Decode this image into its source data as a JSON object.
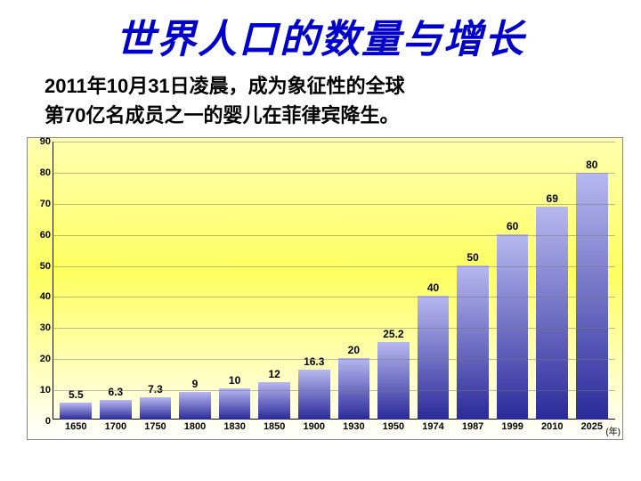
{
  "title": "世界人口的数量与增长",
  "subtitle_line1": "2011年10月31日凌晨，成为象征性的全球",
  "subtitle_line2": "第70亿名成员之一的婴儿在菲律宾降生。",
  "chart": {
    "type": "bar",
    "ylim_max": 90,
    "yticks": [
      0,
      10,
      20,
      30,
      40,
      50,
      60,
      70,
      80,
      90
    ],
    "x_unit_label": "(年)",
    "categories": [
      "1650",
      "1700",
      "1750",
      "1800",
      "1830",
      "1850",
      "1900",
      "1930",
      "1950",
      "1974",
      "1987",
      "1999",
      "2010",
      "2025"
    ],
    "values": [
      5.5,
      6.3,
      7.3,
      9,
      10,
      12,
      16.3,
      20,
      25.2,
      40,
      50,
      60,
      69,
      80
    ],
    "value_labels": [
      "5.5",
      "6.3",
      "7.3",
      "9",
      "10",
      "12",
      "16.3",
      "20",
      "25.2",
      "40",
      "50",
      "60",
      "69",
      "80"
    ],
    "bar_gradient_top": "#b8b8f0",
    "bar_gradient_bottom": "#2a2a9a",
    "bg_gradient_top": "#ffffb0",
    "bg_gradient_mid": "#ffff60",
    "bg_gradient_bottom": "#ffffff",
    "grid_color": "rgba(120,120,120,0.5)",
    "tick_fontsize": 11,
    "label_fontsize": 12,
    "title_color": "#0000cc",
    "title_fontsize": 44
  }
}
